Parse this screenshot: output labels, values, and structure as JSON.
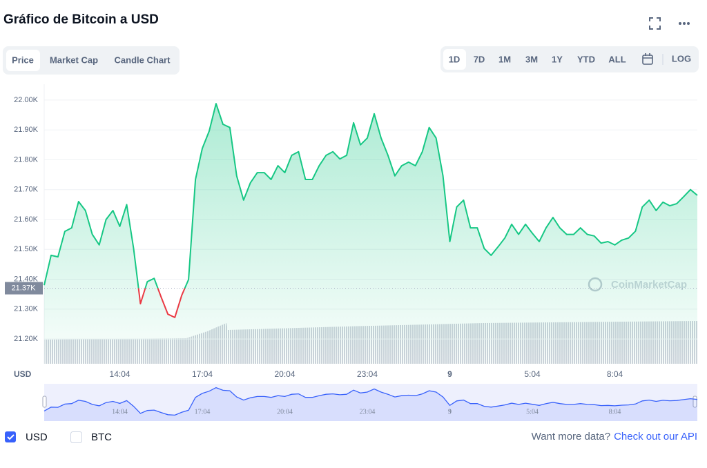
{
  "chart_data": {
    "type": "line",
    "title": "Gráfico de Bitcoin a USD",
    "y_unit_label": "USD",
    "categories": [
      null,
      null,
      null,
      null,
      null,
      null,
      null,
      null,
      null,
      null,
      null,
      "14:04",
      null,
      null,
      null,
      null,
      null,
      null,
      null,
      null,
      null,
      null,
      null,
      "17:04",
      null,
      null,
      null,
      null,
      null,
      null,
      null,
      null,
      null,
      null,
      null,
      "20:04",
      null,
      null,
      null,
      null,
      null,
      null,
      null,
      null,
      null,
      null,
      null,
      "23:04",
      null,
      null,
      null,
      null,
      null,
      null,
      null,
      null,
      null,
      null,
      null,
      "9",
      null,
      null,
      null,
      null,
      null,
      null,
      null,
      null,
      null,
      null,
      null,
      "5:04",
      null,
      null,
      null,
      null,
      null,
      null,
      null,
      null,
      null,
      null,
      null,
      "8:04",
      null,
      null,
      null,
      null,
      null,
      null,
      null,
      null,
      null,
      null,
      null,
      null
    ],
    "values": [
      21380,
      21480,
      21475,
      21560,
      21572,
      21660,
      21630,
      21550,
      21515,
      21600,
      21630,
      21577,
      21650,
      21503,
      21318,
      21392,
      21403,
      21341,
      21283,
      21272,
      21346,
      21399,
      21734,
      21838,
      21896,
      21988,
      21919,
      21908,
      21746,
      21665,
      21723,
      21757,
      21757,
      21734,
      21780,
      21757,
      21815,
      21827,
      21734,
      21734,
      21780,
      21815,
      21827,
      21803,
      21815,
      21924,
      21850,
      21873,
      21954,
      21873,
      21815,
      21746,
      21780,
      21792,
      21780,
      21827,
      21908,
      21873,
      21746,
      21526,
      21642,
      21665,
      21572,
      21572,
      21503,
      21480,
      21508,
      21538,
      21584,
      21550,
      21584,
      21554,
      21526,
      21572,
      21607,
      21572,
      21550,
      21550,
      21572,
      21550,
      21545,
      21521,
      21526,
      21515,
      21531,
      21538,
      21561,
      21642,
      21665,
      21630,
      21658,
      21646,
      21653,
      21676,
      21700,
      21681
    ],
    "color": "#16c784",
    "below_color": "#ea3943",
    "baseline": {
      "value": 21370,
      "label": "21.37K"
    },
    "ylim": [
      21117,
      22053
    ],
    "yticks": [
      {
        "value": 21200,
        "label": "21.20K"
      },
      {
        "value": 21300,
        "label": "21.30K"
      },
      {
        "value": 21400,
        "label": "21.40K"
      },
      {
        "value": 21500,
        "label": "21.50K"
      },
      {
        "value": 21600,
        "label": "21.60K"
      },
      {
        "value": 21700,
        "label": "21.70K"
      },
      {
        "value": 21800,
        "label": "21.80K"
      },
      {
        "value": 21900,
        "label": "21.90K"
      },
      {
        "value": 22000,
        "label": "22.00K"
      }
    ],
    "grid": true,
    "watermark": "CoinMarketCap",
    "navigator_color": "#3861fb"
  },
  "ui": {
    "tabs": [
      "Price",
      "Market Cap",
      "Candle Chart"
    ],
    "ranges": [
      "1D",
      "7D",
      "1M",
      "3M",
      "1Y",
      "YTD",
      "ALL"
    ],
    "log": "LOG",
    "currencies": [
      "USD",
      "BTC"
    ],
    "footer": {
      "text": "Want more data?",
      "link": "Check out our API"
    }
  }
}
